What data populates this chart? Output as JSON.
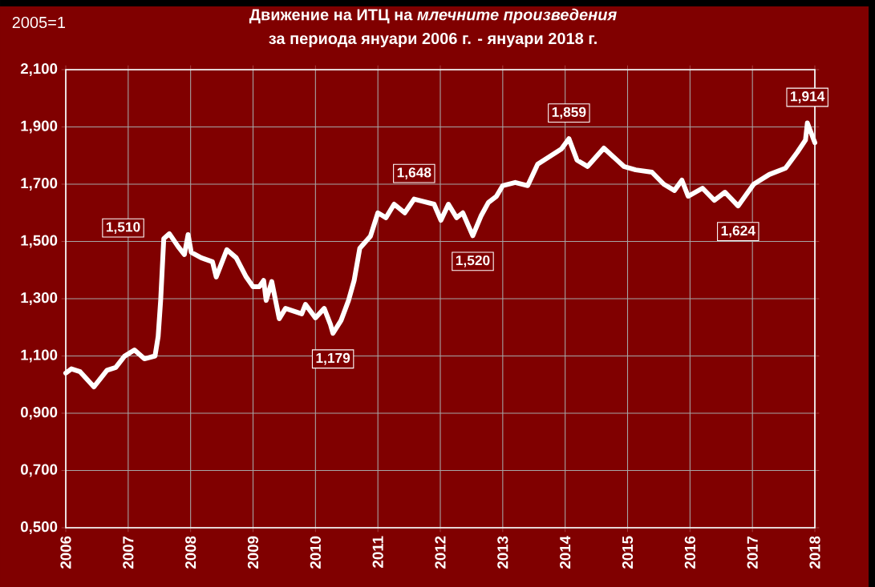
{
  "chart_data": {
    "type": "line",
    "title": "Движение на ИТЦ на *млечните произведения*",
    "subtitle": "за периода  януари 2006 г. - януари 2018 г.",
    "annotations": [
      "2005=1",
      {
        "text": "1,510",
        "x": 2007.57,
        "y": 1.51
      },
      {
        "text": "1,179",
        "x": 2010.28,
        "y": 1.179
      },
      {
        "text": "1,648",
        "x": 2011.58,
        "y": 1.648
      },
      {
        "text": "1,520",
        "x": 2012.52,
        "y": 1.52
      },
      {
        "text": "1,859",
        "x": 2014.06,
        "y": 1.859
      },
      {
        "text": "1,624",
        "x": 2016.77,
        "y": 1.624
      },
      {
        "text": "1,914",
        "x": 2017.88,
        "y": 1.914
      }
    ],
    "x": [
      2006.0,
      2006.09,
      2006.23,
      2006.45,
      2006.66,
      2006.8,
      2006.94,
      2007.1,
      2007.26,
      2007.43,
      2007.48,
      2007.52,
      2007.57,
      2007.66,
      2007.8,
      2007.9,
      2007.96,
      2008.01,
      2008.17,
      2008.35,
      2008.41,
      2008.58,
      2008.73,
      2008.89,
      2009.0,
      2009.1,
      2009.17,
      2009.21,
      2009.3,
      2009.42,
      2009.52,
      2009.78,
      2009.84,
      2010.0,
      2010.14,
      2010.24,
      2010.28,
      2010.41,
      2010.53,
      2010.62,
      2010.71,
      2010.88,
      2011.0,
      2011.13,
      2011.26,
      2011.43,
      2011.58,
      2011.9,
      2012.01,
      2012.13,
      2012.26,
      2012.36,
      2012.52,
      2012.65,
      2012.77,
      2012.9,
      2013.0,
      2013.2,
      2013.4,
      2013.56,
      2013.76,
      2013.94,
      2014.06,
      2014.19,
      2014.36,
      2014.62,
      2014.94,
      2015.13,
      2015.39,
      2015.58,
      2015.75,
      2015.87,
      2015.97,
      2016.2,
      2016.39,
      2016.56,
      2016.77,
      2017.02,
      2017.27,
      2017.53,
      2017.72,
      2017.85,
      2017.88,
      2018.0
    ],
    "series": [
      {
        "color": "#ffffff",
        "values": [
          1.04,
          1.055,
          1.045,
          0.992,
          1.05,
          1.06,
          1.099,
          1.121,
          1.09,
          1.1,
          1.168,
          1.294,
          1.51,
          1.527,
          1.482,
          1.454,
          1.524,
          1.462,
          1.443,
          1.429,
          1.376,
          1.471,
          1.443,
          1.376,
          1.342,
          1.342,
          1.364,
          1.294,
          1.36,
          1.23,
          1.266,
          1.247,
          1.28,
          1.233,
          1.266,
          1.21,
          1.179,
          1.224,
          1.294,
          1.364,
          1.476,
          1.518,
          1.6,
          1.583,
          1.63,
          1.6,
          1.648,
          1.63,
          1.574,
          1.63,
          1.583,
          1.6,
          1.52,
          1.588,
          1.636,
          1.658,
          1.695,
          1.706,
          1.695,
          1.77,
          1.798,
          1.823,
          1.859,
          1.784,
          1.762,
          1.826,
          1.762,
          1.75,
          1.742,
          1.7,
          1.678,
          1.714,
          1.658,
          1.686,
          1.644,
          1.672,
          1.624,
          1.7,
          1.734,
          1.756,
          1.812,
          1.854,
          1.914,
          1.845
        ]
      }
    ],
    "xlim": [
      2006,
      2018
    ],
    "xticks": [
      2006,
      2007,
      2008,
      2009,
      2010,
      2011,
      2012,
      2013,
      2014,
      2015,
      2016,
      2017,
      2018
    ],
    "ylim": [
      0.5,
      2.1
    ],
    "yticks": [
      {
        "value": 0.5,
        "label": "0,500"
      },
      {
        "value": 0.7,
        "label": "0,700"
      },
      {
        "value": 0.9,
        "label": "0,900"
      },
      {
        "value": 1.1,
        "label": "1,100"
      },
      {
        "value": 1.3,
        "label": "1,300"
      },
      {
        "value": 1.5,
        "label": "1,500"
      },
      {
        "value": 1.7,
        "label": "1,700"
      },
      {
        "value": 1.9,
        "label": "1,900"
      },
      {
        "value": 2.1,
        "label": "2,100"
      }
    ],
    "grid": true,
    "line_style": "solid",
    "marker": "none"
  }
}
